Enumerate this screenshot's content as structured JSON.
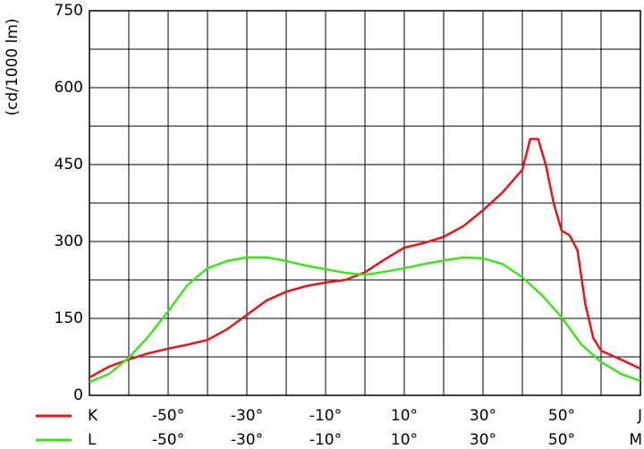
{
  "chart_data": {
    "type": "line",
    "y_label": "(cd/1000 lm)",
    "xlim": [
      -70,
      70
    ],
    "ylim": [
      0,
      750
    ],
    "yticks": [
      0,
      150,
      300,
      450,
      600,
      750
    ],
    "ygrid": [
      0,
      75,
      150,
      225,
      300,
      375,
      450,
      525,
      600,
      675,
      750
    ],
    "xgrid": [
      -70,
      -60,
      -50,
      -40,
      -30,
      -20,
      -10,
      0,
      10,
      20,
      30,
      40,
      50,
      60,
      70
    ],
    "xticks": [
      {
        "value": -50,
        "label": "-50°"
      },
      {
        "value": -30,
        "label": "-30°"
      },
      {
        "value": -10,
        "label": "-10°"
      },
      {
        "value": 10,
        "label": "10°"
      },
      {
        "value": 30,
        "label": "30°"
      },
      {
        "value": 50,
        "label": "50°"
      },
      {
        "value": 70,
        "label": "J"
      }
    ],
    "xticks2": [
      {
        "value": -50,
        "label": "-50°"
      },
      {
        "value": -30,
        "label": "-30°"
      },
      {
        "value": -10,
        "label": "-10°"
      },
      {
        "value": 10,
        "label": "10°"
      },
      {
        "value": 30,
        "label": "30°"
      },
      {
        "value": 50,
        "label": "50°"
      },
      {
        "value": 70,
        "label": "M"
      }
    ],
    "series": [
      {
        "name": "K",
        "color": "#e8141b",
        "x": [
          -70,
          -65,
          -60,
          -55,
          -50,
          -45,
          -40,
          -35,
          -30,
          -25,
          -20,
          -15,
          -10,
          -5,
          0,
          5,
          10,
          15,
          20,
          25,
          30,
          35,
          40,
          42,
          44,
          46,
          48,
          50,
          52,
          54,
          56,
          58,
          60,
          65,
          70
        ],
        "values": [
          35,
          56,
          70,
          82,
          91,
          99,
          108,
          129,
          157,
          185,
          202,
          213,
          220,
          225,
          240,
          265,
          288,
          297,
          309,
          330,
          361,
          396,
          440,
          500,
          500,
          448,
          373,
          321,
          312,
          283,
          178,
          112,
          87,
          70,
          52
        ]
      },
      {
        "name": "L",
        "color": "#3ee51e",
        "x": [
          -70,
          -65,
          -60,
          -55,
          -50,
          -45,
          -40,
          -35,
          -30,
          -25,
          -20,
          -15,
          -10,
          -5,
          0,
          5,
          10,
          15,
          20,
          25,
          30,
          35,
          40,
          45,
          50,
          55,
          60,
          65,
          70
        ],
        "values": [
          26,
          42,
          73,
          115,
          164,
          216,
          248,
          262,
          269,
          269,
          262,
          253,
          246,
          239,
          235,
          241,
          248,
          256,
          263,
          269,
          267,
          256,
          230,
          195,
          152,
          99,
          65,
          42,
          28
        ]
      }
    ]
  }
}
